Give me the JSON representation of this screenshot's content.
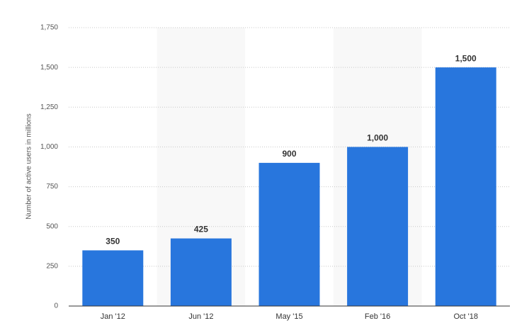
{
  "chart_data": {
    "type": "bar",
    "y_label": "Number of active users in millions",
    "categories": [
      "Jan '12",
      "Jun '12",
      "May '15",
      "Feb '16",
      "Oct '18"
    ],
    "values": [
      350,
      425,
      900,
      1000,
      1500
    ],
    "value_labels": [
      "350",
      "425",
      "900",
      "1,000",
      "1,500"
    ],
    "color": "#2876dd",
    "ylim": [
      0,
      1750
    ],
    "yticks": [
      0,
      250,
      500,
      750,
      {
        "value": 1000,
        "label": "1,000"
      },
      {
        "value": 1250,
        "label": "1,250"
      },
      {
        "value": 1500,
        "label": "1,500"
      },
      {
        "value": 1750,
        "label": "1,750"
      }
    ],
    "grid": true
  }
}
